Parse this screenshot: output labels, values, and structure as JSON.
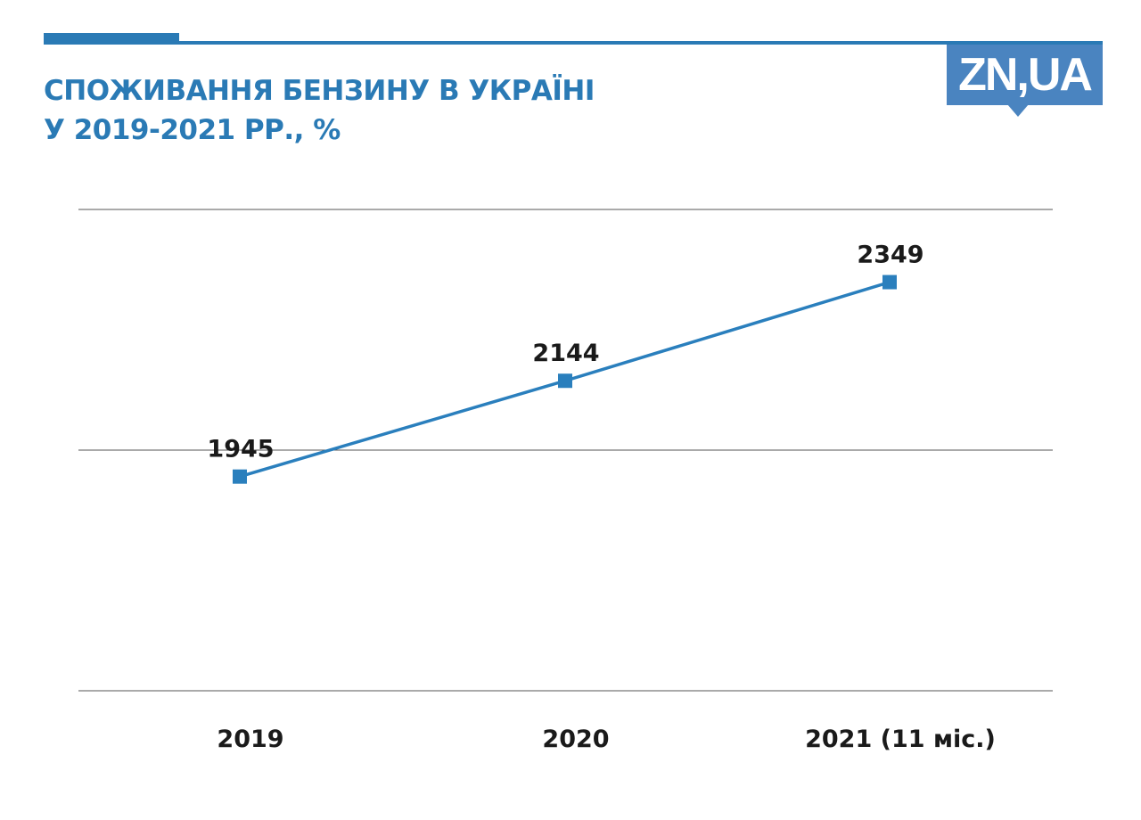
{
  "header": {
    "title_line1": "СПОЖИВАННЯ БЕНЗИНУ В УКРАЇНІ",
    "title_line2": "У 2019-2021 РР., %",
    "logo": "ZN,UA"
  },
  "colors": {
    "accent": "#2a7ab5",
    "line": "#2a7fbd",
    "logo": "#4a84c0"
  },
  "chart_data": {
    "type": "line",
    "title": "СПОЖИВАННЯ БЕНЗИНУ В УКРАЇНІ У 2019-2021 РР., %",
    "categories": [
      "2019",
      "2020",
      "2021 (11 міс.)"
    ],
    "values": [
      1945,
      2144,
      2349
    ],
    "data_labels": [
      "1945",
      "2144",
      "2349"
    ],
    "ylim": [
      1500,
      2500
    ],
    "gridlines": [
      1500,
      2000,
      2500
    ],
    "grid": true,
    "marker": "square",
    "xlabel": "",
    "ylabel": ""
  }
}
